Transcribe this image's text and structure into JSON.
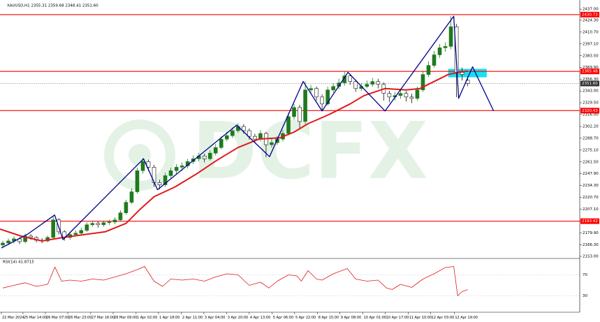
{
  "chart_data": {
    "type": "candlestick",
    "header": "XAUUSD,H1  2355.31 2359.68 2348.41 2351.60",
    "watermark": "DCFX",
    "up_color": "#1f7a1f",
    "down_color": "#111111",
    "xlim": [
      -0.5,
      103
    ],
    "ylim": [
      2150.6,
      2445.1
    ],
    "xticks": [
      {
        "value": -0.25,
        "label": "22 Mar 2024"
      },
      {
        "value": 3.6,
        "label": "25 Mar 14:00"
      },
      {
        "value": 7.6,
        "label": "26 Mar 07:00"
      },
      {
        "value": 11.6,
        "label": "26 Mar 23:00"
      },
      {
        "value": 15.7,
        "label": "27 Mar 16:00"
      },
      {
        "value": 19.7,
        "label": "28 Mar 09:00"
      },
      {
        "value": 23.8,
        "label": "1 Apr 02:00"
      },
      {
        "value": 27.8,
        "label": "1 Apr 18:00"
      },
      {
        "value": 31.9,
        "label": "2 Apr 11:00"
      },
      {
        "value": 35.9,
        "label": "3 Apr 04:00"
      },
      {
        "value": 40.0,
        "label": "3 Apr 20:00"
      },
      {
        "value": 44.0,
        "label": "4 Apr 13:00"
      },
      {
        "value": 48.1,
        "label": "5 Apr 06:00"
      },
      {
        "value": 52.1,
        "label": "5 Apr 22:00"
      },
      {
        "value": 56.2,
        "label": "8 Apr 15:00"
      },
      {
        "value": 60.2,
        "label": "9 Apr 08:00"
      },
      {
        "value": 64.3,
        "label": "10 Apr 01:00"
      },
      {
        "value": 68.3,
        "label": "10 Apr 17:00"
      },
      {
        "value": 72.4,
        "label": "11 Apr 10:00"
      },
      {
        "value": 76.4,
        "label": "12 Apr 03:00"
      },
      {
        "value": 80.6,
        "label": "12 Apr 19:00"
      }
    ],
    "yticks": [
      {
        "value": 2437,
        "label": "2437.00"
      },
      {
        "value": 2424.3,
        "label": "2424.30"
      },
      {
        "value": 2410.7,
        "label": "2410.70"
      },
      {
        "value": 2397.1,
        "label": "2397.10"
      },
      {
        "value": 2383.5,
        "label": "2383.50"
      },
      {
        "value": 2369.9,
        "label": "2369.90"
      },
      {
        "value": 2356.3,
        "label": "2356.30"
      },
      {
        "value": 2343,
        "label": "2343.00"
      },
      {
        "value": 2329.5,
        "label": "2329.50"
      },
      {
        "value": 2316,
        "label": "2316.00"
      },
      {
        "value": 2302.2,
        "label": "2302.20"
      },
      {
        "value": 2288.7,
        "label": "2288.70"
      },
      {
        "value": 2275.1,
        "label": "2275.10"
      },
      {
        "value": 2261.5,
        "label": "2261.50"
      },
      {
        "value": 2247.9,
        "label": "2247.90"
      },
      {
        "value": 2234.3,
        "label": "2234.30"
      },
      {
        "value": 2220.7,
        "label": "2220.70"
      },
      {
        "value": 2207.1,
        "label": "2207.10"
      },
      {
        "value": 2193.5,
        "label": "2193.50"
      },
      {
        "value": 2179.9,
        "label": "2179.90"
      },
      {
        "value": 2166.3,
        "label": "2166.30"
      },
      {
        "value": 2153,
        "label": "2153.00"
      }
    ],
    "candles": [
      [
        2166.0,
        2171,
        2163,
        2168.3
      ],
      [
        2168.3,
        2173.5,
        2166,
        2170.7
      ],
      [
        2170.7,
        2176,
        2168,
        2173.1
      ],
      [
        2173.1,
        2175,
        2167,
        2169.9
      ],
      [
        2169.9,
        2179,
        2168,
        2176.3
      ],
      [
        2176.3,
        2178.5,
        2172,
        2174.7
      ],
      [
        2174.7,
        2176,
        2169,
        2171.5
      ],
      [
        2171.5,
        2174,
        2168,
        2170.7
      ],
      [
        2170.7,
        2177,
        2169,
        2174.7
      ],
      [
        2174.7,
        2199,
        2173,
        2194.9
      ],
      [
        2194.9,
        2197,
        2178,
        2181.2
      ],
      [
        2181.2,
        2183,
        2171,
        2174.7
      ],
      [
        2174.7,
        2181,
        2172,
        2178.0
      ],
      [
        2178.0,
        2183,
        2176,
        2179.6
      ],
      [
        2179.6,
        2186,
        2177,
        2182.8
      ],
      [
        2182.8,
        2192,
        2181,
        2189.3
      ],
      [
        2189.3,
        2194,
        2187,
        2190.9
      ],
      [
        2190.9,
        2193,
        2186,
        2189.3
      ],
      [
        2189.3,
        2194,
        2187,
        2191.7
      ],
      [
        2191.7,
        2195,
        2189,
        2192.5
      ],
      [
        2192.5,
        2198,
        2190,
        2194.9
      ],
      [
        2194.9,
        2206,
        2193,
        2203.0
      ],
      [
        2203.0,
        2218,
        2201,
        2215.1
      ],
      [
        2215.1,
        2231,
        2213,
        2227.2
      ],
      [
        2227.2,
        2255,
        2225,
        2251.4
      ],
      [
        2251.4,
        2266,
        2248,
        2261.9
      ],
      [
        2261.9,
        2264,
        2251,
        2255.4
      ],
      [
        2255.4,
        2258,
        2233,
        2237.7
      ],
      [
        2237.7,
        2241,
        2230,
        2235.2
      ],
      [
        2235.2,
        2249,
        2233,
        2245.7
      ],
      [
        2245.7,
        2255,
        2243,
        2251.4
      ],
      [
        2251.4,
        2259,
        2248,
        2255.4
      ],
      [
        2255.4,
        2261,
        2251,
        2257.0
      ],
      [
        2257.0,
        2265,
        2254,
        2261.9
      ],
      [
        2261.9,
        2269,
        2259,
        2265.1
      ],
      [
        2265.1,
        2272,
        2262,
        2268.3
      ],
      [
        2268.3,
        2271,
        2261,
        2265.1
      ],
      [
        2265.1,
        2275,
        2263,
        2271.6
      ],
      [
        2271.6,
        2282,
        2269,
        2278.0
      ],
      [
        2278.0,
        2291,
        2276,
        2287.7
      ],
      [
        2287.7,
        2296,
        2285,
        2291.7
      ],
      [
        2291.7,
        2301,
        2289,
        2297.4
      ],
      [
        2297.4,
        2306,
        2295,
        2302.2
      ],
      [
        2302.2,
        2305,
        2294,
        2297.4
      ],
      [
        2297.4,
        2300,
        2287,
        2290.9
      ],
      [
        2290.9,
        2294,
        2284,
        2287.7
      ],
      [
        2287.7,
        2298,
        2285,
        2294.2
      ],
      [
        2294.2,
        2296,
        2267,
        2281.2
      ],
      [
        2281.2,
        2288,
        2278,
        2283.7
      ],
      [
        2283.7,
        2291,
        2281,
        2287.7
      ],
      [
        2287.7,
        2298,
        2285,
        2294.2
      ],
      [
        2294.2,
        2318,
        2292,
        2313.5
      ],
      [
        2313.5,
        2328,
        2310,
        2324.0
      ],
      [
        2324.0,
        2327,
        2299,
        2307.9
      ],
      [
        2307.9,
        2354,
        2305,
        2344.2
      ],
      [
        2344.2,
        2350,
        2340,
        2345.8
      ],
      [
        2345.8,
        2348,
        2332,
        2336.1
      ],
      [
        2336.1,
        2339,
        2321,
        2328.1
      ],
      [
        2328.1,
        2348,
        2326,
        2344.2
      ],
      [
        2344.2,
        2352,
        2341,
        2348.2
      ],
      [
        2348.2,
        2357,
        2345,
        2352.3
      ],
      [
        2352.3,
        2366,
        2349,
        2360.3
      ],
      [
        2360.3,
        2363,
        2350,
        2353.9
      ],
      [
        2353.9,
        2356,
        2342,
        2345.8
      ],
      [
        2345.8,
        2352,
        2343,
        2348.2
      ],
      [
        2348.2,
        2355,
        2346,
        2350.7
      ],
      [
        2350.7,
        2358,
        2348,
        2353.9
      ],
      [
        2353.9,
        2357,
        2346,
        2350.7
      ],
      [
        2350.7,
        2353,
        2332,
        2340.2
      ],
      [
        2340.2,
        2343,
        2330,
        2336.1
      ],
      [
        2336.1,
        2342,
        2332,
        2337.7
      ],
      [
        2337.7,
        2344,
        2334,
        2340.2
      ],
      [
        2340.2,
        2343,
        2331,
        2336.1
      ],
      [
        2336.1,
        2340,
        2329,
        2334.5
      ],
      [
        2334.5,
        2348,
        2332,
        2344.2
      ],
      [
        2344.2,
        2366,
        2342,
        2361.9
      ],
      [
        2361.9,
        2377,
        2359,
        2372.4
      ],
      [
        2372.4,
        2389,
        2370,
        2384.5
      ],
      [
        2384.5,
        2397,
        2381,
        2392.6
      ],
      [
        2392.6,
        2399,
        2388,
        2394.2
      ],
      [
        2394.2,
        2429,
        2391,
        2416.8
      ],
      [
        2416.8,
        2420,
        2336,
        2364.4
      ],
      [
        2364.4,
        2370,
        2355,
        2361.9
      ],
      [
        2355.31,
        2359.68,
        2348.41,
        2351.6
      ]
    ],
    "ma": {
      "color": "#e01a1a",
      "x": [
        -0.5,
        3.25,
        7,
        10.75,
        14.5,
        18.25,
        22,
        24.5,
        27,
        30.75,
        34.5,
        38.25,
        42,
        45.75,
        49.5,
        52,
        54.5,
        58.25,
        62,
        64.5,
        68.25,
        72,
        74.5,
        77,
        79.5,
        81.375,
        83
      ],
      "values": [
        2184.4,
        2176.3,
        2170.7,
        2174.7,
        2178.0,
        2181.2,
        2190.9,
        2207.0,
        2221.5,
        2232.8,
        2247.4,
        2263.5,
        2278.0,
        2287.7,
        2289.3,
        2295.8,
        2305.5,
        2315.9,
        2328.1,
        2337.7,
        2345.8,
        2344.2,
        2345.8,
        2353.9,
        2361.9,
        2364.4,
        2366.0
      ]
    },
    "levels": [
      {
        "value": 2430.73,
        "label": "2430.73",
        "color": "#ff0000"
      },
      {
        "value": 2365.48,
        "label": "2365.48",
        "color": "#ff0000"
      },
      {
        "value": 2351.6,
        "label": "2351.60",
        "color": "#9a9a9a"
      },
      {
        "value": 2320.43,
        "label": "2320.43",
        "color": "#ff0000"
      },
      {
        "value": 2193.42,
        "label": "2193.42",
        "color": "#ff0000"
      }
    ],
    "zigzag": {
      "color": "#00008b",
      "x": [
        -0.25,
        4.5,
        9.25,
        10.75,
        25.125,
        27.625,
        41.75,
        47.625,
        53.625,
        57,
        61.625,
        68.25,
        80.5,
        81.375,
        83.875,
        87.625
      ],
      "values": [
        2162.6,
        2178.8,
        2200.5,
        2172.3,
        2265.1,
        2229.6,
        2303.8,
        2267.5,
        2353.9,
        2320.0,
        2364.4,
        2320.0,
        2428.9,
        2334.5,
        2370.8,
        2320.0
      ]
    },
    "zone": {
      "color": "#19e0f0",
      "x": [
        79.5,
        86.4
      ],
      "y": [
        2358.7,
        2368.4
      ]
    },
    "rsi": {
      "label": "RSI(14) 41.8715",
      "color": "#e01a1a",
      "ylim": [
        0,
        100
      ],
      "yticks": [
        70,
        30
      ],
      "x": [
        0,
        2,
        4,
        6,
        8,
        9.3,
        10.5,
        12,
        14,
        16,
        18,
        20,
        22,
        24,
        25.3,
        27,
        28.5,
        30,
        32,
        34,
        36,
        38,
        40,
        42,
        44,
        46,
        47.5,
        49,
        51,
        52.5,
        53.3,
        54.5,
        56,
        57,
        59,
        61.5,
        63,
        65,
        67,
        68.5,
        69.5,
        71,
        73,
        75,
        77,
        79,
        80.5,
        81.2,
        82,
        83
      ],
      "values": [
        45,
        50,
        55,
        48,
        52,
        85,
        58,
        60,
        58,
        62,
        60,
        66,
        72,
        80,
        86,
        58,
        48,
        62,
        60,
        62,
        58,
        66,
        72,
        70,
        50,
        56,
        45,
        58,
        70,
        68,
        58,
        78,
        62,
        60,
        72,
        82,
        62,
        58,
        60,
        45,
        42,
        52,
        46,
        62,
        72,
        84,
        86,
        30,
        38,
        41.8715
      ]
    }
  }
}
